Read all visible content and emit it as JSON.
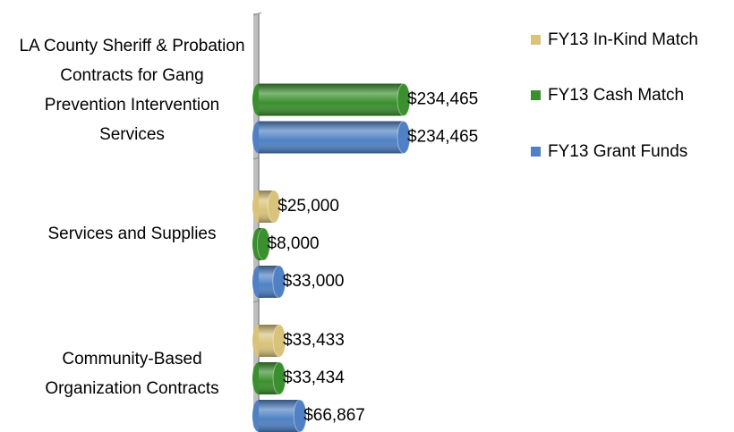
{
  "chart_data": {
    "type": "bar",
    "orientation": "horizontal",
    "categories": [
      "LA County Sheriff & Probation Contracts for Gang Prevention Intervention Services",
      "Services and Supplies",
      "Community-Based Organization Contracts"
    ],
    "series": [
      {
        "name": "FY13 In-Kind Match",
        "color": "#d9c27a",
        "values": [
          null,
          25000,
          33433
        ],
        "value_labels": [
          null,
          "$25,000",
          "$33,433"
        ]
      },
      {
        "name": "FY13 Cash Match",
        "color": "#3a8f2e",
        "values": [
          234465,
          8000,
          33434
        ],
        "value_labels": [
          "$234,465",
          "$8,000",
          "$33,434"
        ]
      },
      {
        "name": "FY13 Grant Funds",
        "color": "#4f81c4",
        "values": [
          234465,
          33000,
          66867
        ],
        "value_labels": [
          "$234,465",
          "$33,000",
          "$66,867"
        ]
      }
    ],
    "xlim": [
      0,
      300000
    ],
    "legend": "right"
  }
}
